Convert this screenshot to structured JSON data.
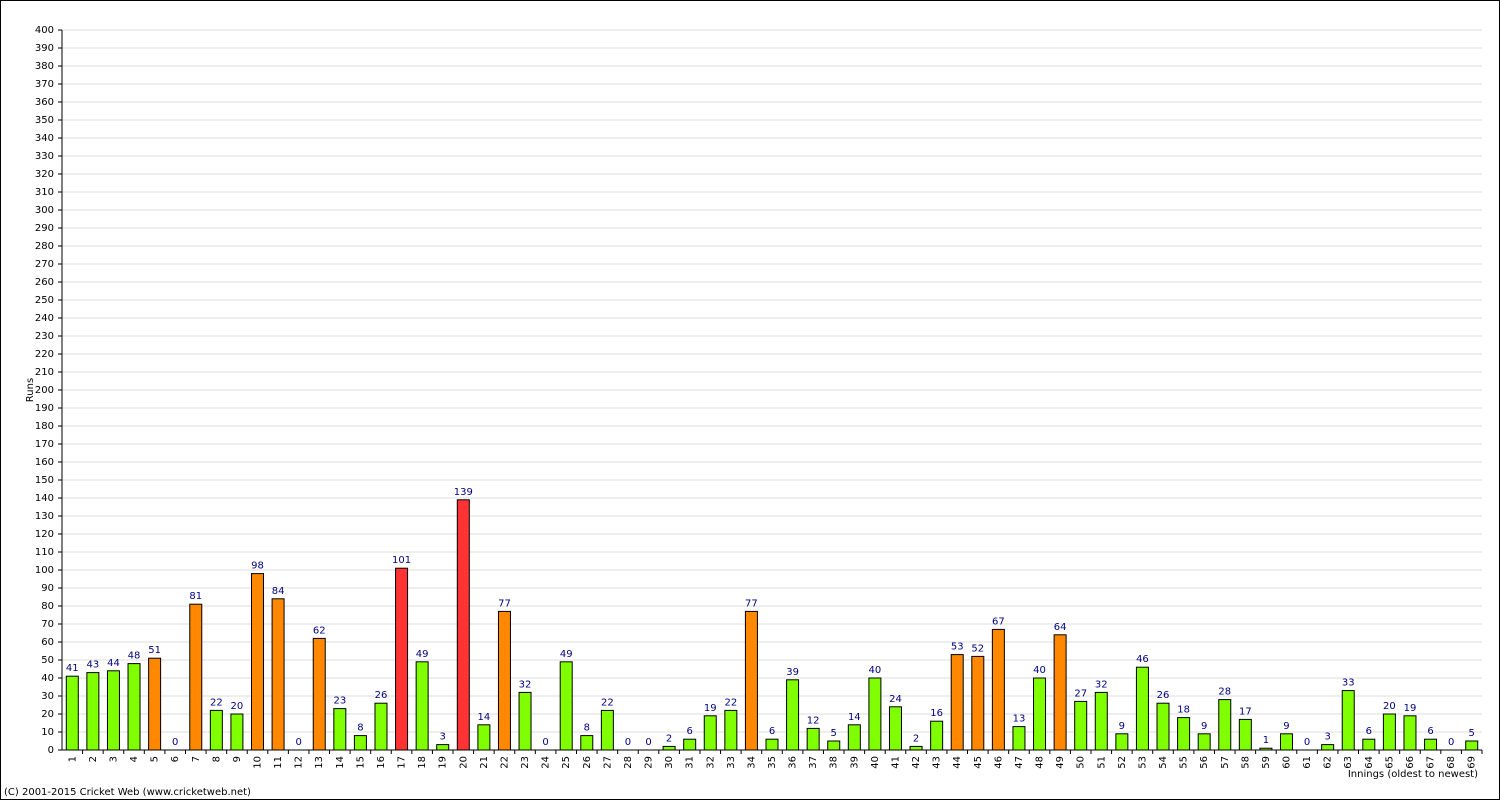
{
  "chart_data": {
    "type": "bar",
    "y_label": "Runs",
    "x_label": "Innings (oldest to newest)",
    "footer": "(C) 2001-2015 Cricket Web (www.cricketweb.net)",
    "categories": [
      "1",
      "2",
      "3",
      "4",
      "5",
      "6",
      "7",
      "8",
      "9",
      "10",
      "11",
      "12",
      "13",
      "14",
      "15",
      "16",
      "17",
      "18",
      "19",
      "20",
      "21",
      "22",
      "23",
      "24",
      "25",
      "26",
      "27",
      "28",
      "29",
      "30",
      "31",
      "32",
      "33",
      "34",
      "35",
      "36",
      "37",
      "38",
      "39",
      "40",
      "41",
      "42",
      "43",
      "44",
      "45",
      "46",
      "47",
      "48",
      "49",
      "50",
      "51",
      "52",
      "53",
      "54",
      "55",
      "56",
      "57",
      "58",
      "59",
      "60",
      "61",
      "62",
      "63",
      "64",
      "65",
      "66",
      "67",
      "68",
      "69"
    ],
    "values": [
      41,
      43,
      44,
      48,
      51,
      0,
      81,
      22,
      20,
      98,
      84,
      0,
      62,
      23,
      8,
      26,
      101,
      49,
      3,
      139,
      14,
      77,
      32,
      0,
      49,
      8,
      22,
      0,
      0,
      2,
      6,
      19,
      22,
      77,
      6,
      39,
      12,
      5,
      14,
      40,
      24,
      2,
      16,
      53,
      52,
      67,
      13,
      40,
      64,
      27,
      32,
      9,
      46,
      26,
      18,
      9,
      28,
      17,
      1,
      9,
      0,
      3,
      33,
      6,
      20,
      19,
      6,
      0,
      5
    ],
    "colors": [
      "#80ff00",
      "#80ff00",
      "#80ff00",
      "#80ff00",
      "#ff8800",
      "#80ff00",
      "#ff8800",
      "#80ff00",
      "#80ff00",
      "#ff8800",
      "#ff8800",
      "#80ff00",
      "#ff8800",
      "#80ff00",
      "#80ff00",
      "#80ff00",
      "#ff3333",
      "#80ff00",
      "#80ff00",
      "#ff3333",
      "#80ff00",
      "#ff8800",
      "#80ff00",
      "#80ff00",
      "#80ff00",
      "#80ff00",
      "#80ff00",
      "#80ff00",
      "#80ff00",
      "#80ff00",
      "#80ff00",
      "#80ff00",
      "#80ff00",
      "#ff8800",
      "#80ff00",
      "#80ff00",
      "#80ff00",
      "#80ff00",
      "#80ff00",
      "#80ff00",
      "#80ff00",
      "#80ff00",
      "#80ff00",
      "#ff8800",
      "#ff8800",
      "#ff8800",
      "#80ff00",
      "#80ff00",
      "#ff8800",
      "#80ff00",
      "#80ff00",
      "#80ff00",
      "#80ff00",
      "#80ff00",
      "#80ff00",
      "#80ff00",
      "#80ff00",
      "#80ff00",
      "#80ff00",
      "#80ff00",
      "#80ff00",
      "#80ff00",
      "#80ff00",
      "#80ff00",
      "#80ff00",
      "#80ff00",
      "#80ff00",
      "#80ff00",
      "#80ff00"
    ],
    "ylim": [
      0,
      400
    ],
    "yticks": [
      0,
      10,
      20,
      30,
      40,
      50,
      60,
      70,
      80,
      90,
      100,
      110,
      120,
      130,
      140,
      150,
      160,
      170,
      180,
      190,
      200,
      210,
      220,
      230,
      240,
      250,
      260,
      270,
      280,
      290,
      300,
      310,
      320,
      330,
      340,
      350,
      360,
      370,
      380,
      390,
      400
    ],
    "grid": true
  }
}
